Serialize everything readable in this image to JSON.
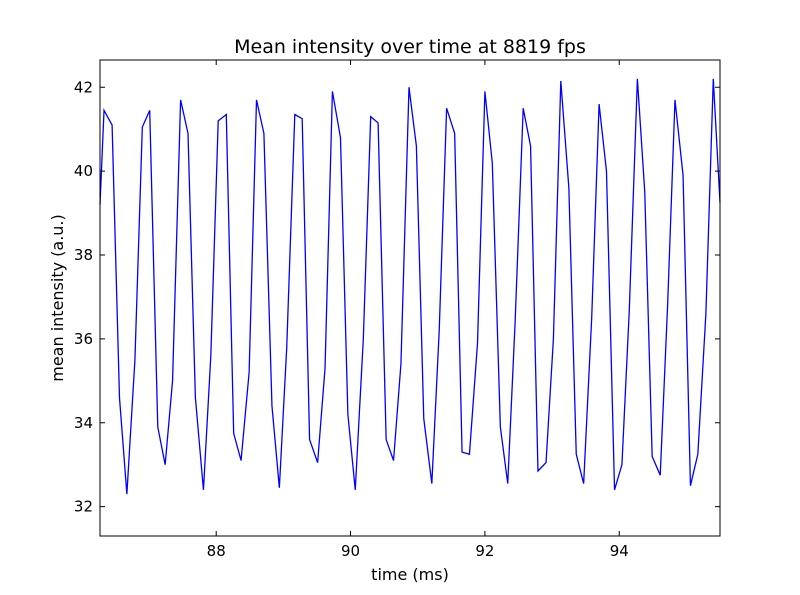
{
  "chart_data": {
    "type": "line",
    "title": "Mean intensity over time at 8819 fps",
    "xlabel": "time (ms)",
    "ylabel": "mean intensity (a.u.)",
    "xlim": [
      86.27,
      95.5
    ],
    "ylim": [
      31.3,
      42.65
    ],
    "xticks": [
      88,
      90,
      92,
      94
    ],
    "yticks": [
      32,
      34,
      36,
      38,
      40,
      42
    ],
    "grid": false,
    "legend": "none",
    "series": [
      {
        "color": "#0000ff",
        "x": [
          86.27,
          86.33,
          86.45,
          86.56,
          86.67,
          86.79,
          86.9,
          87.01,
          87.13,
          87.24,
          87.35,
          87.47,
          87.58,
          87.69,
          87.81,
          87.92,
          88.03,
          88.15,
          88.26,
          88.37,
          88.49,
          88.6,
          88.71,
          88.83,
          88.94,
          89.05,
          89.17,
          89.28,
          89.39,
          89.51,
          89.62,
          89.73,
          89.85,
          89.96,
          90.07,
          90.19,
          90.3,
          90.41,
          90.53,
          90.64,
          90.75,
          90.87,
          90.98,
          91.09,
          91.21,
          91.32,
          91.43,
          91.55,
          91.66,
          91.77,
          91.89,
          92.0,
          92.11,
          92.23,
          92.34,
          92.45,
          92.57,
          92.68,
          92.79,
          92.91,
          93.02,
          93.13,
          93.25,
          93.36,
          93.47,
          93.59,
          93.7,
          93.81,
          93.93,
          94.04,
          94.15,
          94.27,
          94.38,
          94.49,
          94.61,
          94.72,
          94.83,
          94.95,
          95.06,
          95.17,
          95.29,
          95.4,
          95.5
        ],
        "y": [
          39.2,
          41.45,
          41.1,
          34.6,
          32.3,
          35.5,
          41.05,
          41.45,
          33.9,
          33.0,
          35.0,
          41.7,
          40.9,
          34.6,
          32.4,
          35.6,
          41.2,
          41.35,
          33.75,
          33.1,
          35.2,
          41.7,
          40.9,
          34.4,
          32.45,
          35.8,
          41.35,
          41.25,
          33.6,
          33.05,
          35.3,
          41.9,
          40.8,
          34.2,
          32.4,
          36.0,
          41.3,
          41.15,
          33.6,
          33.1,
          35.4,
          42.0,
          40.6,
          34.1,
          32.55,
          36.2,
          41.5,
          40.9,
          33.3,
          33.25,
          35.9,
          41.9,
          40.2,
          33.9,
          32.55,
          36.4,
          41.5,
          40.6,
          32.85,
          33.05,
          36.0,
          42.15,
          39.6,
          33.25,
          32.55,
          36.5,
          41.6,
          40.0,
          32.4,
          33.0,
          36.7,
          42.2,
          39.5,
          33.2,
          32.75,
          36.8,
          41.7,
          39.9,
          32.5,
          33.25,
          36.6,
          42.2,
          39.25
        ]
      }
    ]
  }
}
